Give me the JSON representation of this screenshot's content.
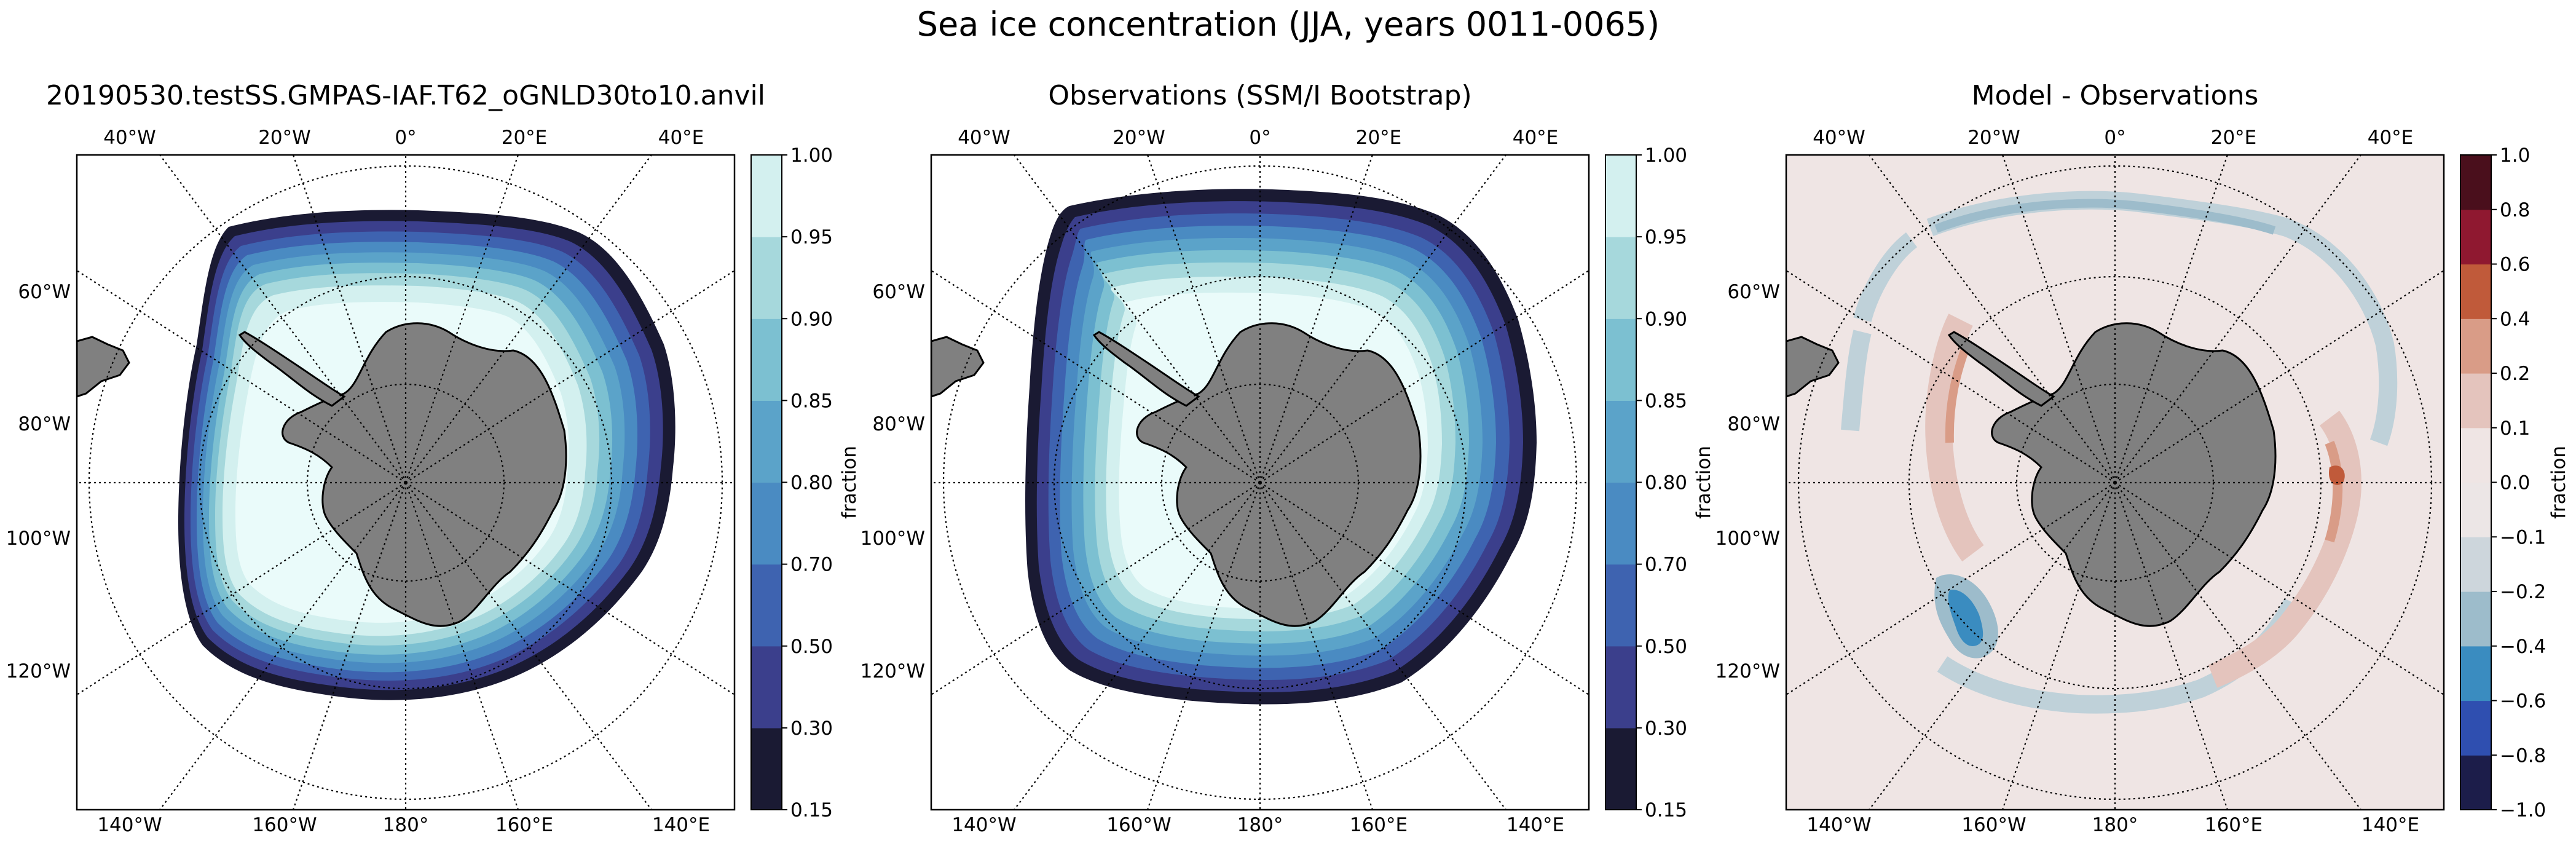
{
  "figure": {
    "suptitle": "Sea ice concentration (JJA, years 0011-0065)"
  },
  "chart_data": [
    {
      "type": "heatmap",
      "projection": "south-polar-stereographic",
      "title": "20190530.testSS.GMPAS-IAF.T62_oGNLD30to10.anvil",
      "top_lon_labels": [
        "40°W",
        "20°W",
        "0°",
        "20°E",
        "40°E"
      ],
      "bottom_lon_labels": [
        "140°W",
        "160°W",
        "180°",
        "160°E",
        "140°E"
      ],
      "left_lon_labels": [
        "60°W",
        "80°W",
        "100°W",
        "120°W"
      ],
      "colorbar": {
        "label": "fraction",
        "levels": [
          "0.15",
          "0.30",
          "0.50",
          "0.70",
          "0.80",
          "0.85",
          "0.90",
          "0.95",
          "1.00"
        ],
        "colors": [
          "#1a1a33",
          "#3b3f8c",
          "#3e63b0",
          "#4a8bc2",
          "#5ba3c9",
          "#7cc0d1",
          "#a6d8dc",
          "#d3f0ef"
        ]
      },
      "ice_edge_fraction": 0.15
    },
    {
      "type": "heatmap",
      "projection": "south-polar-stereographic",
      "title": "Observations (SSM/I Bootstrap)",
      "top_lon_labels": [
        "40°W",
        "20°W",
        "0°",
        "20°E",
        "40°E"
      ],
      "bottom_lon_labels": [
        "140°W",
        "160°W",
        "180°",
        "160°E",
        "140°E"
      ],
      "left_lon_labels": [
        "60°W",
        "80°W",
        "100°W",
        "120°W"
      ],
      "colorbar": {
        "label": "fraction",
        "levels": [
          "0.15",
          "0.30",
          "0.50",
          "0.70",
          "0.80",
          "0.85",
          "0.90",
          "0.95",
          "1.00"
        ],
        "colors": [
          "#1a1a33",
          "#3b3f8c",
          "#3e63b0",
          "#4a8bc2",
          "#5ba3c9",
          "#7cc0d1",
          "#a6d8dc",
          "#d3f0ef"
        ]
      },
      "ice_edge_fraction": 0.15
    },
    {
      "type": "heatmap",
      "projection": "south-polar-stereographic",
      "title": "Model - Observations",
      "top_lon_labels": [
        "40°W",
        "20°W",
        "0°",
        "20°E",
        "40°E"
      ],
      "bottom_lon_labels": [
        "140°W",
        "160°W",
        "180°",
        "160°E",
        "140°E"
      ],
      "left_lon_labels": [
        "60°W",
        "80°W",
        "100°W",
        "120°W"
      ],
      "colorbar": {
        "label": "fraction",
        "levels": [
          "−1.0",
          "−0.8",
          "−0.6",
          "−0.4",
          "−0.2",
          "−0.1",
          "0.0",
          "0.1",
          "0.2",
          "0.4",
          "0.6",
          "0.8",
          "1.0"
        ],
        "colors": [
          "#1c1d4a",
          "#2f4fb0",
          "#3a8cc0",
          "#9dbccb",
          "#cdd6dc",
          "#ece6e6",
          "#efe5e4",
          "#e4c4bd",
          "#d99c87",
          "#c05a3a",
          "#8f1830",
          "#4a0f1c"
        ]
      }
    }
  ]
}
